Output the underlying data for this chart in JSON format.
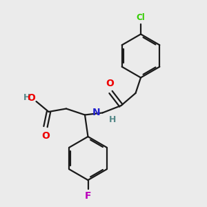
{
  "background_color": "#ebebeb",
  "bond_color": "#1a1a1a",
  "O_color": "#ee0000",
  "N_color": "#2222cc",
  "Cl_color": "#33cc00",
  "F_color": "#bb00bb",
  "H_color": "#558888",
  "line_width": 1.6,
  "figsize": [
    3.0,
    3.0
  ],
  "dpi": 100,
  "xlim": [
    0,
    10
  ],
  "ylim": [
    0,
    10
  ]
}
